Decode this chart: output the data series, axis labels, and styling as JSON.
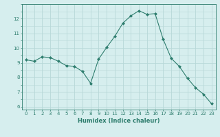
{
  "x": [
    0,
    1,
    2,
    3,
    4,
    5,
    6,
    7,
    8,
    9,
    10,
    11,
    12,
    13,
    14,
    15,
    16,
    17,
    18,
    19,
    20,
    21,
    22,
    23
  ],
  "y": [
    9.2,
    9.1,
    9.4,
    9.35,
    9.1,
    8.8,
    8.75,
    8.4,
    7.6,
    9.25,
    10.05,
    10.8,
    11.7,
    12.2,
    12.55,
    12.3,
    12.35,
    10.6,
    9.3,
    8.75,
    7.95,
    7.3,
    6.85,
    6.2
  ],
  "line_color": "#2e7d6e",
  "marker": "D",
  "marker_size": 2,
  "background_color": "#d6eeee",
  "grid_color": "#b8d8d8",
  "xlabel": "Humidex (Indice chaleur)",
  "ylim": [
    5.8,
    13.0
  ],
  "xlim": [
    -0.5,
    23.5
  ],
  "yticks": [
    6,
    7,
    8,
    9,
    10,
    11,
    12
  ],
  "xticks": [
    0,
    1,
    2,
    3,
    4,
    5,
    6,
    7,
    8,
    9,
    10,
    11,
    12,
    13,
    14,
    15,
    16,
    17,
    18,
    19,
    20,
    21,
    22,
    23
  ],
  "tick_fontsize": 5,
  "xlabel_fontsize": 6,
  "linewidth": 0.8
}
